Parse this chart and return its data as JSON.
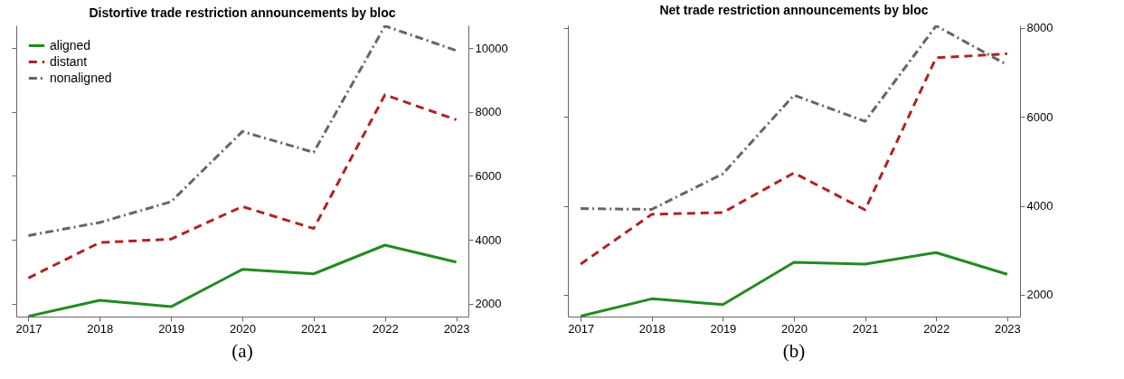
{
  "chart_data": [
    {
      "type": "line",
      "title": "Distortive trade restriction announcements by bloc",
      "x": [
        2017,
        2018,
        2019,
        2020,
        2021,
        2022,
        2023
      ],
      "xlim": [
        2016.83,
        2023.17
      ],
      "xticks": [
        2017,
        2018,
        2019,
        2020,
        2021,
        2022,
        2023
      ],
      "ylim": [
        1590,
        10720
      ],
      "yticks": [
        2000,
        4000,
        6000,
        8000,
        10000
      ],
      "legend": "top left",
      "grid": false,
      "annotations": [
        "(a)"
      ],
      "series": [
        {
          "name": "aligned",
          "color": "#228b22",
          "line_style": "solid",
          "values": [
            1600,
            2100,
            1900,
            3070,
            2930,
            3830,
            3300
          ]
        },
        {
          "name": "distant",
          "color": "#b22222",
          "line_style": "dashed",
          "values": [
            2800,
            3910,
            4020,
            5040,
            4350,
            8540,
            7760
          ]
        },
        {
          "name": "nonaligned",
          "color": "#666666",
          "line_style": "dotted",
          "values": [
            4130,
            4540,
            5190,
            7390,
            6740,
            10700,
            9930
          ]
        }
      ]
    },
    {
      "type": "line",
      "title": "Net trade restriction announcements by bloc",
      "x": [
        2017,
        2018,
        2019,
        2020,
        2021,
        2022,
        2023
      ],
      "xlim": [
        2016.82,
        2023.18
      ],
      "xticks": [
        2017,
        2018,
        2019,
        2020,
        2021,
        2022,
        2023
      ],
      "ylim": [
        1510,
        8060
      ],
      "yticks": [
        2000,
        4000,
        6000,
        8000
      ],
      "legend": "top left",
      "grid": false,
      "annotations": [
        "(b)"
      ],
      "series": [
        {
          "name": "aligned",
          "color": "#228b22",
          "line_style": "solid",
          "values": [
            1520,
            1910,
            1780,
            2730,
            2690,
            2950,
            2460
          ]
        },
        {
          "name": "distant",
          "color": "#b22222",
          "line_style": "dashed",
          "values": [
            2690,
            3810,
            3850,
            4740,
            3910,
            7330,
            7420
          ]
        },
        {
          "name": "nonaligned",
          "color": "#666666",
          "line_style": "dotted",
          "values": [
            3940,
            3920,
            4720,
            6490,
            5900,
            8050,
            7170
          ]
        }
      ]
    }
  ]
}
